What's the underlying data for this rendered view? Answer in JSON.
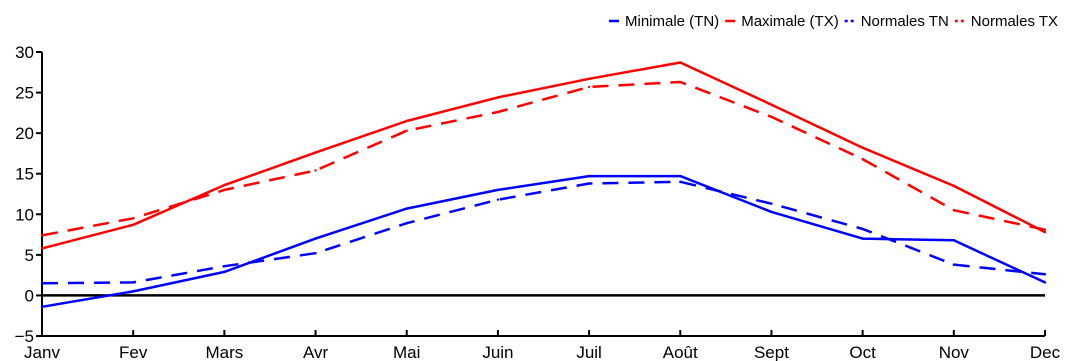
{
  "chart_data": {
    "type": "line",
    "categories": [
      "Janv",
      "Fev",
      "Mars",
      "Avr",
      "Mai",
      "Juin",
      "Juil",
      "Août",
      "Sept",
      "Oct",
      "Nov",
      "Dec"
    ],
    "ylim": [
      -5,
      30
    ],
    "yticks": [
      -5,
      0,
      5,
      10,
      15,
      20,
      25,
      30
    ],
    "legend_position": "top-right",
    "grid": false,
    "series": [
      {
        "name": "Minimale (TN)",
        "color": "#0000ff",
        "style": "solid",
        "values": [
          -1.4,
          0.5,
          2.9,
          7.0,
          10.7,
          13.0,
          14.7,
          14.7,
          10.3,
          7.0,
          6.8,
          1.6
        ]
      },
      {
        "name": "Maximale (TX)",
        "color": "#ff0000",
        "style": "solid",
        "values": [
          5.8,
          8.7,
          13.6,
          17.6,
          21.5,
          24.4,
          26.7,
          28.7,
          23.5,
          18.2,
          13.5,
          7.8
        ]
      },
      {
        "name": "Normales TN",
        "color": "#0000ff",
        "style": "dashed",
        "values": [
          1.5,
          1.6,
          3.6,
          5.2,
          8.9,
          11.8,
          13.8,
          14.0,
          11.3,
          8.2,
          3.8,
          2.6
        ]
      },
      {
        "name": "Normales TX",
        "color": "#ff0000",
        "style": "dashed",
        "values": [
          7.4,
          9.5,
          13.0,
          15.4,
          20.3,
          22.6,
          25.7,
          26.3,
          22.0,
          16.8,
          10.5,
          8.1
        ]
      }
    ]
  }
}
